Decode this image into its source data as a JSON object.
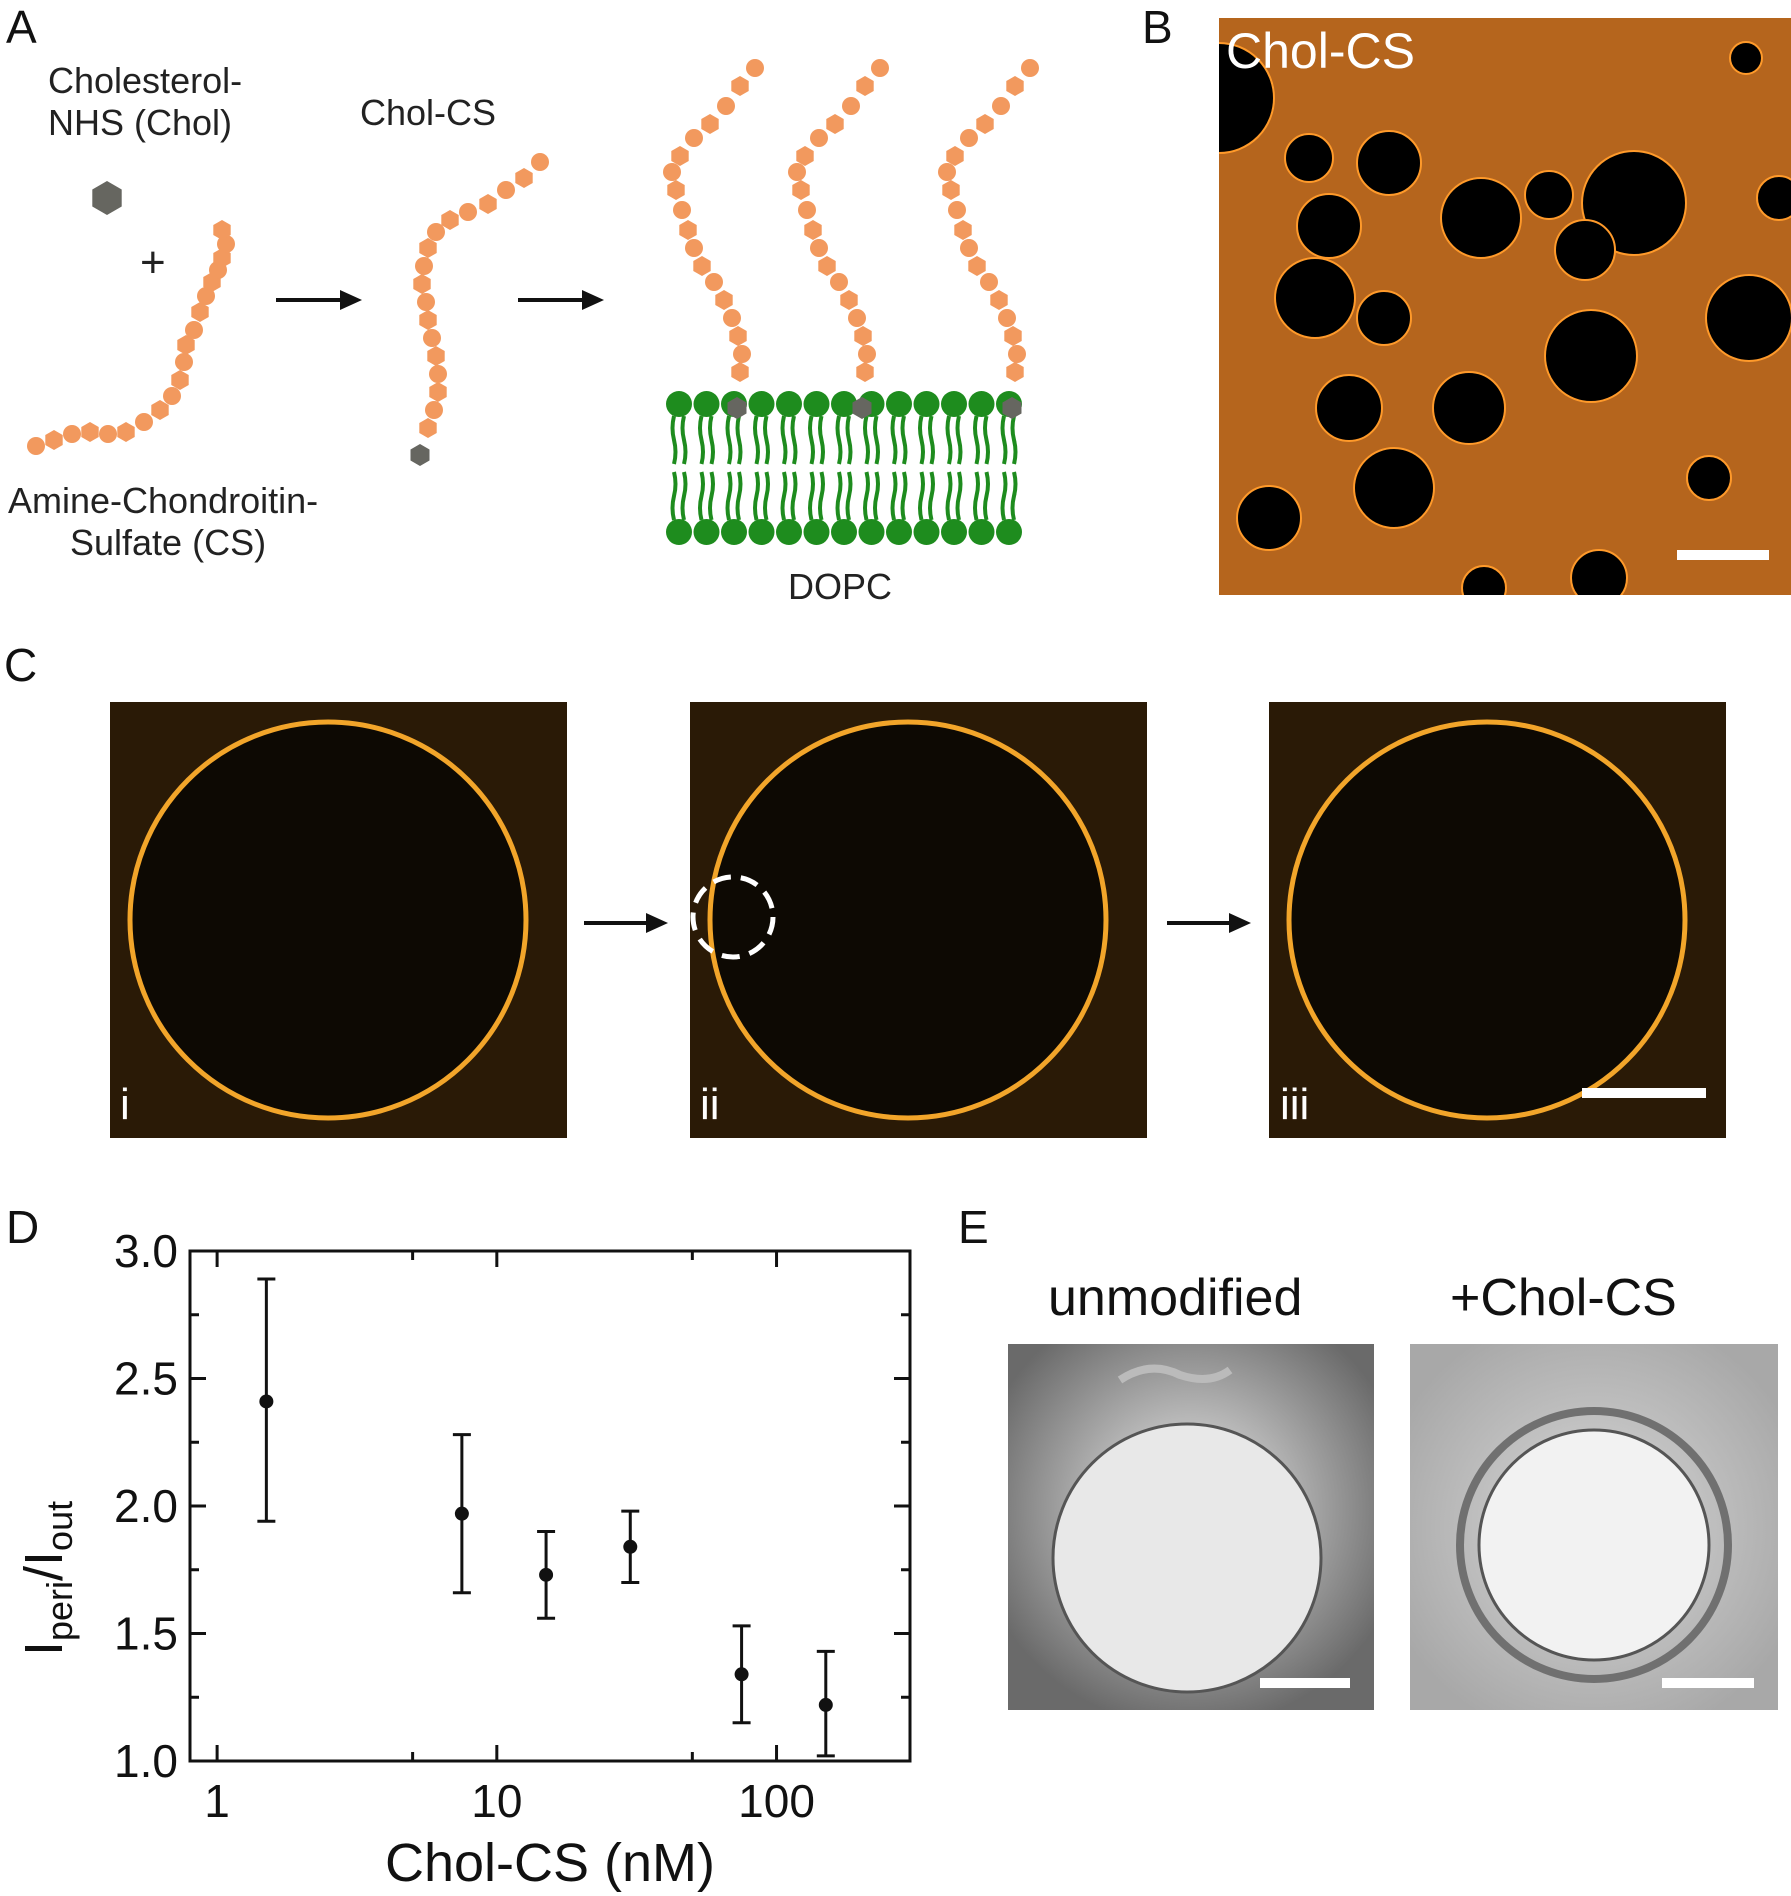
{
  "panels": {
    "A": "A",
    "B": "B",
    "C": "C",
    "D": "D",
    "E": "E"
  },
  "panel_a": {
    "chol_label_line1": "Cholesterol-",
    "chol_label_line2": "NHS (Chol)",
    "plus": "+",
    "cs_label_line1": "Amine-Chondroitin-",
    "cs_label_line2": "Sulfate (CS)",
    "cholcs_label": "Chol-CS",
    "dopc_label": "DOPC",
    "colors": {
      "cs_bead": "#f2995e",
      "chol": "#666660",
      "lipid": "#1e8c1e"
    }
  },
  "panel_b": {
    "overlay_label": "Chol-CS",
    "colors": {
      "background": "#b5651d",
      "pore": "#000000"
    }
  },
  "panel_c": {
    "frame_labels": [
      "i",
      "ii",
      "iii"
    ]
  },
  "panel_d": {
    "chart_data": {
      "type": "scatter",
      "xlabel": "Chol-CS (nM)",
      "ylabel_main": "I",
      "ylabel_sub1": "peri",
      "ylabel_mid": "/I",
      "ylabel_sub2": "out",
      "xscale": "log",
      "xlim": [
        0.8,
        300
      ],
      "ylim": [
        1.0,
        3.0
      ],
      "x_ticks": [
        {
          "value": 1,
          "label": "1"
        },
        {
          "value": 10,
          "label": "10"
        },
        {
          "value": 100,
          "label": "100"
        }
      ],
      "y_ticks": [
        {
          "value": 1.0,
          "label": "1.0"
        },
        {
          "value": 1.5,
          "label": "1.5"
        },
        {
          "value": 2.0,
          "label": "2.0"
        },
        {
          "value": 2.5,
          "label": "2.5"
        },
        {
          "value": 3.0,
          "label": "3.0"
        }
      ],
      "points": [
        {
          "x": 1.5,
          "y": 2.41,
          "err_low": 1.94,
          "err_high": 2.89
        },
        {
          "x": 7.5,
          "y": 1.97,
          "err_low": 1.66,
          "err_high": 2.28
        },
        {
          "x": 15,
          "y": 1.73,
          "err_low": 1.56,
          "err_high": 1.9
        },
        {
          "x": 30,
          "y": 1.84,
          "err_low": 1.7,
          "err_high": 1.98
        },
        {
          "x": 75,
          "y": 1.34,
          "err_low": 1.15,
          "err_high": 1.53
        },
        {
          "x": 150,
          "y": 1.22,
          "err_low": 1.02,
          "err_high": 1.43
        }
      ]
    }
  },
  "panel_e": {
    "left_title": "unmodified",
    "right_title": "+Chol-CS"
  }
}
